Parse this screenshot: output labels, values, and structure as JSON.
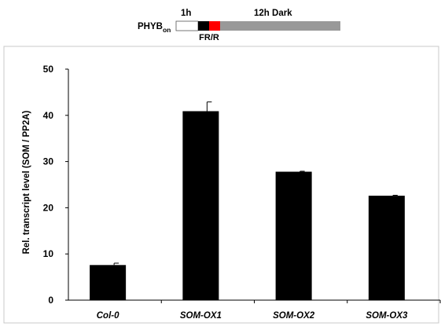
{
  "schematic": {
    "label_main": "PHYB",
    "label_sub": "on",
    "segment_light_label": "1h",
    "segment_pulse_label": "FR/R",
    "segment_dark_label": "12h Dark",
    "colors": {
      "light": "#ffffff",
      "far_red": "#000000",
      "red": "#ff0000",
      "dark": "#999999"
    }
  },
  "chart_data": {
    "type": "bar",
    "title": "",
    "xlabel": "",
    "ylabel": "Rel. transcript level (SOM / PP2A)",
    "categories": [
      "Col-0",
      "SOM-OX1",
      "SOM-OX2",
      "SOM-OX3"
    ],
    "values": [
      7.6,
      40.9,
      27.8,
      22.6
    ],
    "errors": [
      0.4,
      2.0,
      0.1,
      0.1
    ],
    "ylim": [
      0,
      50
    ],
    "yticks": [
      0,
      10,
      20,
      30,
      40,
      50
    ],
    "bar_color": "#000000",
    "grid": false,
    "legend": "none"
  }
}
